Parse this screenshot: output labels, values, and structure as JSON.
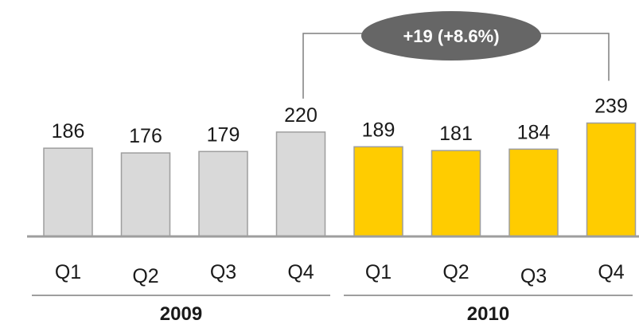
{
  "chart_data": {
    "type": "bar",
    "categories": [
      "Q1",
      "Q2",
      "Q3",
      "Q4",
      "Q1",
      "Q2",
      "Q3",
      "Q4"
    ],
    "groups": [
      {
        "label": "2009",
        "values": [
          186,
          176,
          179,
          220
        ],
        "color": "#d9d9d9"
      },
      {
        "label": "2010",
        "values": [
          189,
          181,
          184,
          239
        ],
        "color": "#ffcc00"
      }
    ],
    "values": [
      186,
      176,
      179,
      220,
      189,
      181,
      184,
      239
    ],
    "callout": {
      "text": "+19 (+8.6%)",
      "from_category_index": 3,
      "to_category_index": 7,
      "color": "#666666"
    },
    "bar_edge_color": "#9e9e9e",
    "axis_color": "#9e9e9e"
  }
}
